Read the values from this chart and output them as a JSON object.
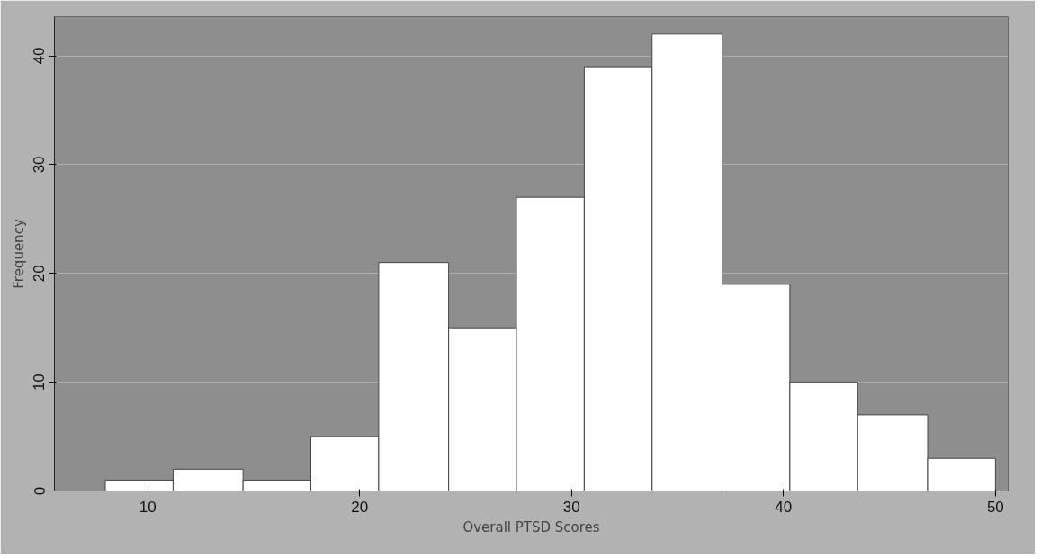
{
  "chart_data": {
    "type": "histogram",
    "xlabel": "Overall PTSD Scores",
    "ylabel": "Frequency",
    "bins": [
      8,
      11.2,
      14.5,
      17.7,
      20.9,
      24.2,
      27.4,
      30.6,
      33.8,
      37.1,
      40.3,
      43.5,
      46.8,
      50
    ],
    "values": [
      1,
      2,
      1,
      5,
      21,
      15,
      27,
      39,
      42,
      19,
      10,
      7,
      3
    ],
    "color": "#ffffff",
    "xlim": [
      5.6,
      50.6
    ],
    "xticks": [
      10,
      20,
      30,
      40,
      50
    ],
    "ylim": [
      0,
      43.6
    ],
    "yticks": [
      0,
      10,
      20,
      30,
      40
    ],
    "grid": "y"
  }
}
